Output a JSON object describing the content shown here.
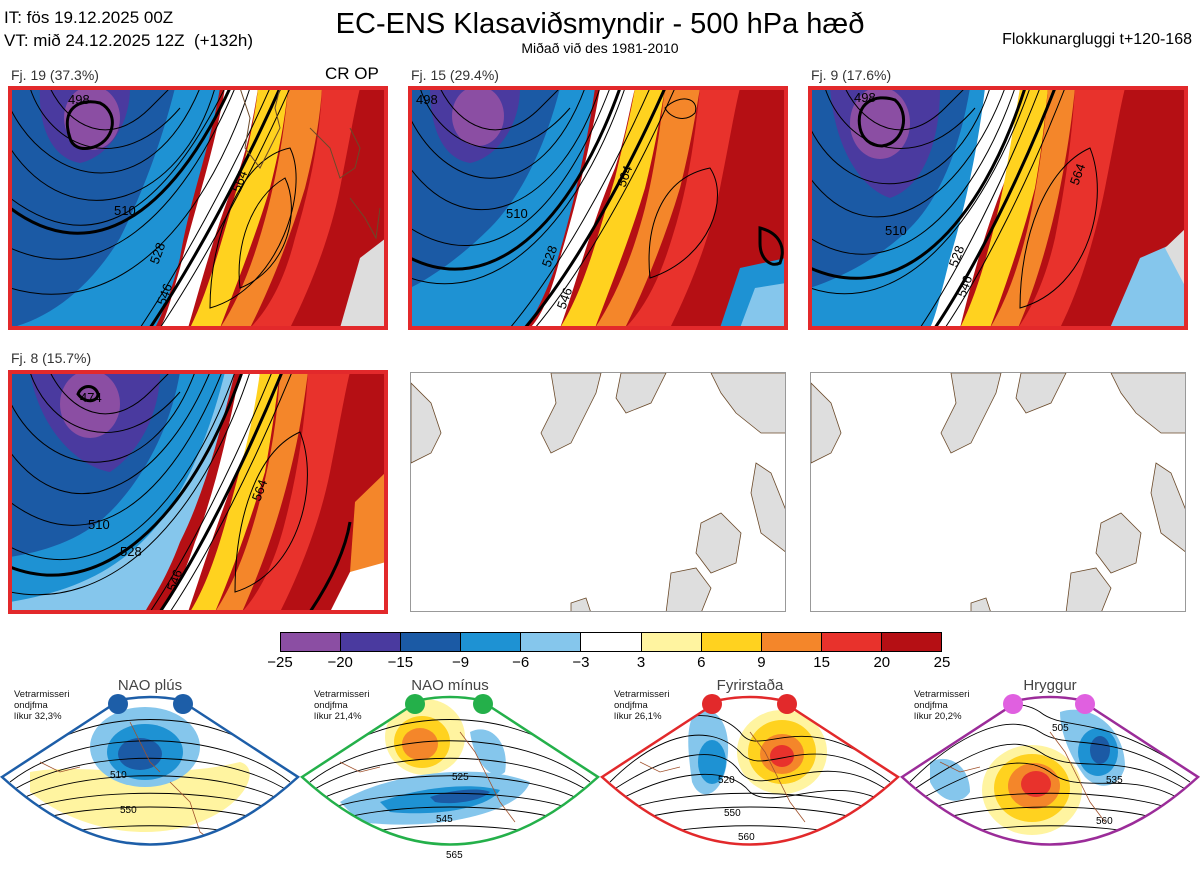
{
  "header": {
    "it_line": "IT: fös 19.12.2025 00Z",
    "vt_line": "VT: mið 24.12.2025 12Z  (+132h)",
    "title": "EC-ENS Klasaviðsmyndir - 500 hPa hæð",
    "subtitle": "Miðað við des 1981-2010",
    "window": "Flokkunargluggi t+120-168"
  },
  "panels": [
    {
      "label": "Fj. 19 (37.3%)",
      "tag": "CR OP",
      "contours": [
        "510",
        "528",
        "546",
        "564",
        "498"
      ]
    },
    {
      "label": "Fj. 15 (29.4%)",
      "tag": "",
      "contours": [
        "510",
        "528",
        "546",
        "564",
        "498"
      ]
    },
    {
      "label": "Fj. 9 (17.6%)",
      "tag": "",
      "contours": [
        "510",
        "528",
        "546",
        "564",
        "498"
      ]
    },
    {
      "label": "Fj. 8 (15.7%)",
      "tag": "",
      "contours": [
        "510",
        "528",
        "546",
        "564",
        "474"
      ]
    }
  ],
  "colorbar": {
    "ticks": [
      "−25",
      "−20",
      "−15",
      "−9",
      "−6",
      "−3",
      "3",
      "6",
      "9",
      "15",
      "20",
      "25"
    ],
    "colors": [
      "#8b4ea3",
      "#4a3a9f",
      "#1b5aa5",
      "#1e92d3",
      "#85c6ec",
      "#ffffff",
      "#fff4a0",
      "#ffd21f",
      "#f4862a",
      "#e8322c",
      "#b50f14"
    ]
  },
  "regimes": [
    {
      "title": "NAO plús",
      "stat1": "Vetrarmisseri",
      "stat2": "ondjfma",
      "stat3": "líkur 32,3%",
      "color": "#1d5ea8",
      "contours": [
        "510",
        "550"
      ]
    },
    {
      "title": "NAO mínus",
      "stat1": "Vetrarmisseri",
      "stat2": "ondjfma",
      "stat3": "líkur 21,4%",
      "color": "#24b04a",
      "contours": [
        "525",
        "545",
        "565"
      ]
    },
    {
      "title": "Fyrirstaða",
      "stat1": "Vetrarmisseri",
      "stat2": "ondjfma",
      "stat3": "líkur 26,1%",
      "color": "#e2292b",
      "contours": [
        "520",
        "550",
        "560"
      ]
    },
    {
      "title": "Hryggur",
      "stat1": "Vetrarmisseri",
      "stat2": "ondjfma",
      "stat3": "líkur 20,2%",
      "color": "#e060e0",
      "contours": [
        "505",
        "535",
        "560"
      ]
    }
  ]
}
